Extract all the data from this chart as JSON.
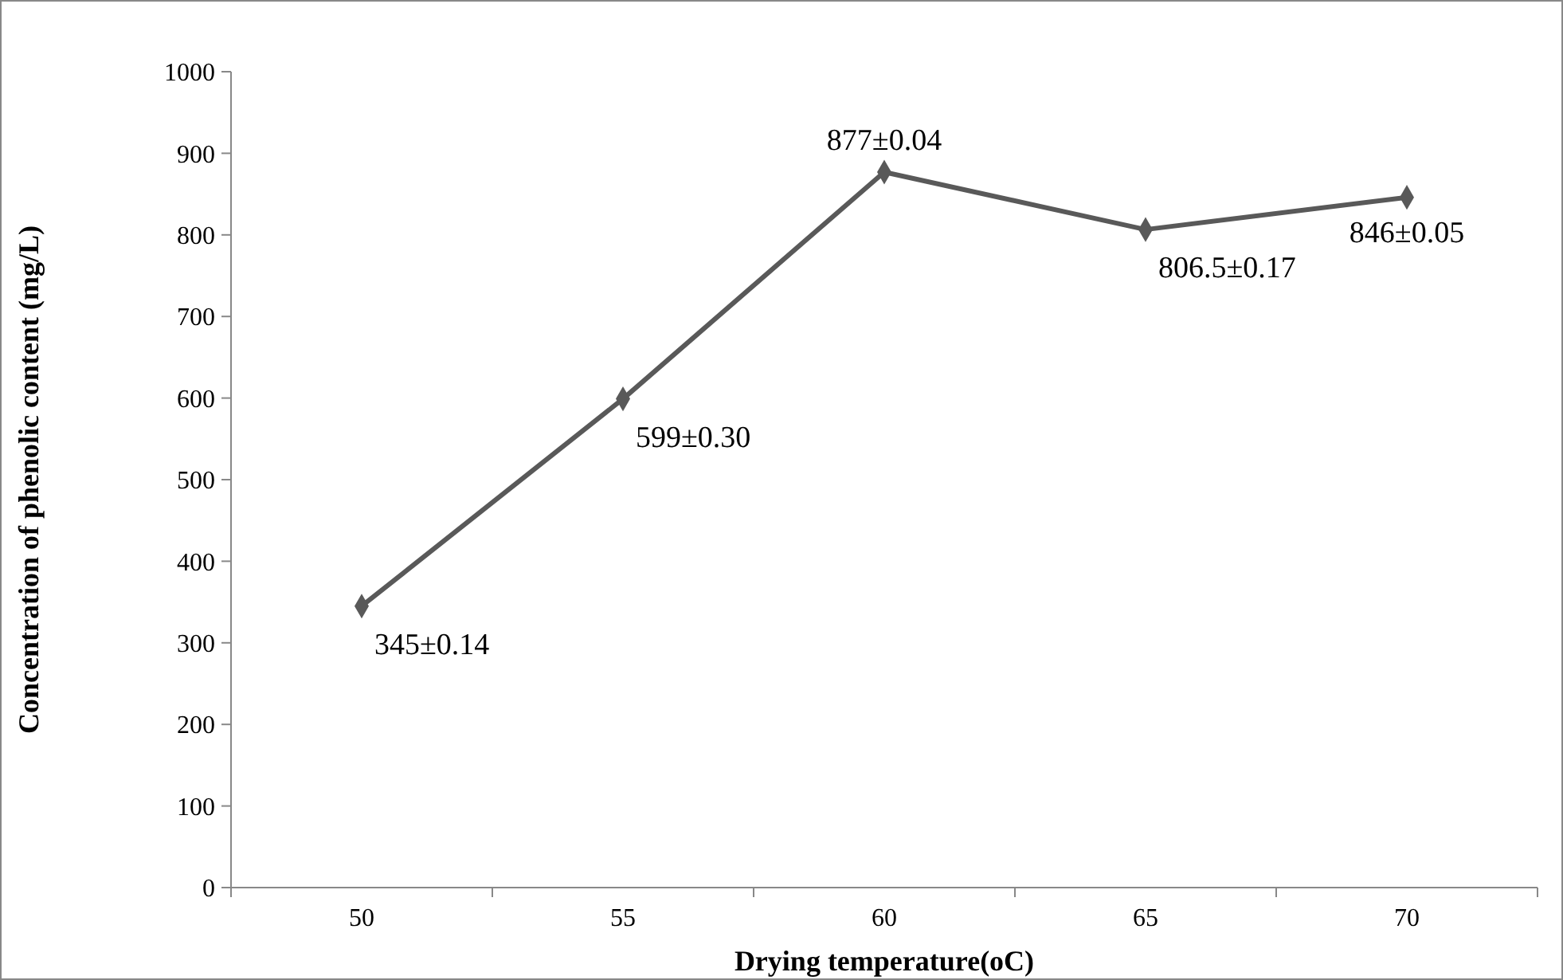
{
  "chart_data": {
    "type": "line",
    "xlabel": "Drying temperature(oC)",
    "ylabel": "Concentration of phenolic content (mg/L)",
    "categories": [
      "50",
      "55",
      "60",
      "65",
      "70"
    ],
    "series": [
      {
        "color": "#595959",
        "values": [
          345,
          599,
          877,
          806.5,
          846
        ],
        "value_labels": [
          "345±0.14",
          "599±0.30",
          "877±0.04",
          "806.5±0.17",
          "846±0.05"
        ]
      }
    ],
    "ylim": [
      0,
      1000
    ],
    "yticks": [
      0,
      100,
      200,
      300,
      400,
      500,
      600,
      700,
      800,
      900,
      1000
    ],
    "marker": "diamond",
    "line_style": "solid"
  }
}
